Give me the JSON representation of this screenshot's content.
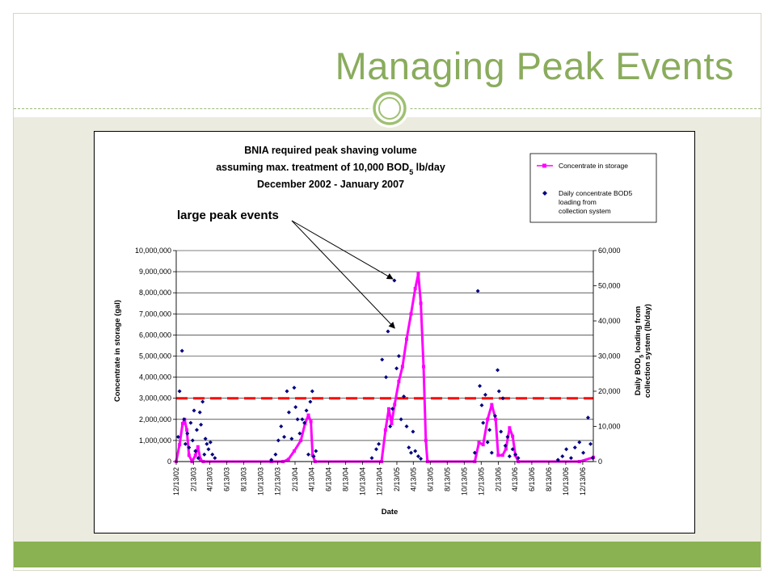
{
  "slide": {
    "title": "Managing Peak Events"
  },
  "colors": {
    "title": "#8aac5d",
    "footer": "#8ab152",
    "body_bg": "#ecebdf",
    "series_storage": "#ff00ff",
    "series_daily": "#000080",
    "threshold": "#ff0000"
  },
  "chart_data": {
    "type": "line",
    "title": [
      "BNIA required peak shaving volume",
      "assuming max. treatment of 10,000 BOD5 lb/day",
      "December 2002 - January 2007"
    ],
    "title_parts": {
      "line2_prefix": "assuming max. treatment of 10,000 BOD",
      "line2_sub": "5",
      "line2_suffix": " lb/day"
    },
    "xlabel": "Date",
    "ylabel": "Concentrate in storage (gal)",
    "y2label": [
      "Daily BOD5 loading from",
      "collection system (lb/day)"
    ],
    "y2label_parts": {
      "prefix": "Daily BOD",
      "sub": "5",
      "suffix": " loading from"
    },
    "x_range": [
      "12/13/02",
      "1/20/07"
    ],
    "x_ticks": [
      "12/13/02",
      "2/13/03",
      "4/13/03",
      "6/13/03",
      "8/13/03",
      "10/13/03",
      "12/13/03",
      "2/13/04",
      "4/13/04",
      "6/13/04",
      "8/13/04",
      "10/13/04",
      "12/13/04",
      "2/13/05",
      "4/13/05",
      "6/13/05",
      "8/13/05",
      "10/13/05",
      "12/13/05",
      "2/13/06",
      "4/13/06",
      "6/13/06",
      "8/13/06",
      "10/13/06",
      "12/13/06"
    ],
    "ylim": [
      0,
      10000000
    ],
    "y_ticks": [
      "0",
      "1,000,000",
      "2,000,000",
      "3,000,000",
      "4,000,000",
      "5,000,000",
      "6,000,000",
      "7,000,000",
      "8,000,000",
      "9,000,000",
      "10,000,000"
    ],
    "y2lim": [
      0,
      60000
    ],
    "y2_ticks": [
      "0",
      "10,000",
      "20,000",
      "30,000",
      "40,000",
      "50,000",
      "60,000"
    ],
    "grid": "horizontal",
    "legend_position": "top-right",
    "threshold_line": {
      "axis": "y2",
      "value": 18000,
      "style": "dashed"
    },
    "series": [
      {
        "name": "Concentrate in storage",
        "axis": "y",
        "points": [
          [
            "12/13/02",
            0
          ],
          [
            "12/25/02",
            800000
          ],
          [
            "1/5/03",
            1800000
          ],
          [
            "1/12/03",
            2000000
          ],
          [
            "1/20/03",
            1500000
          ],
          [
            "1/28/03",
            300000
          ],
          [
            "2/8/03",
            0
          ],
          [
            "2/20/03",
            300000
          ],
          [
            "3/1/03",
            700000
          ],
          [
            "3/10/03",
            100000
          ],
          [
            "3/20/03",
            0
          ],
          [
            "11/20/03",
            0
          ],
          [
            "1/1/04",
            0
          ],
          [
            "1/20/04",
            100000
          ],
          [
            "2/10/04",
            500000
          ],
          [
            "3/5/04",
            1000000
          ],
          [
            "3/20/04",
            1800000
          ],
          [
            "4/1/04",
            2200000
          ],
          [
            "4/10/04",
            1900000
          ],
          [
            "4/16/04",
            300000
          ],
          [
            "4/25/04",
            0
          ],
          [
            "12/20/04",
            0
          ],
          [
            "1/3/05",
            1500000
          ],
          [
            "1/15/05",
            2500000
          ],
          [
            "1/25/05",
            1800000
          ],
          [
            "2/5/05",
            2700000
          ],
          [
            "2/20/05",
            3800000
          ],
          [
            "3/5/05",
            4500000
          ],
          [
            "3/20/05",
            5800000
          ],
          [
            "4/5/05",
            7000000
          ],
          [
            "4/20/05",
            8200000
          ],
          [
            "5/1/05",
            8900000
          ],
          [
            "5/10/05",
            7500000
          ],
          [
            "5/20/05",
            4500000
          ],
          [
            "5/28/05",
            1000000
          ],
          [
            "6/3/05",
            0
          ],
          [
            "11/20/05",
            0
          ],
          [
            "12/5/05",
            900000
          ],
          [
            "12/20/05",
            800000
          ],
          [
            "1/5/06",
            2000000
          ],
          [
            "1/20/06",
            2700000
          ],
          [
            "2/3/06",
            2000000
          ],
          [
            "2/12/06",
            300000
          ],
          [
            "2/28/06",
            300000
          ],
          [
            "3/12/06",
            600000
          ],
          [
            "3/25/06",
            1600000
          ],
          [
            "4/5/06",
            1200000
          ],
          [
            "4/15/06",
            300000
          ],
          [
            "4/25/06",
            0
          ],
          [
            "12/1/06",
            0
          ],
          [
            "1/20/07",
            200000
          ]
        ]
      },
      {
        "name": "Daily concentrate BOD5 loading from collection system",
        "axis": "y2",
        "points": [
          [
            "12/20/02",
            7000
          ],
          [
            "12/25/02",
            20000
          ],
          [
            "1/3/03",
            31500
          ],
          [
            "1/10/03",
            12000
          ],
          [
            "1/15/03",
            5000
          ],
          [
            "1/22/03",
            8000
          ],
          [
            "1/28/03",
            4000
          ],
          [
            "2/3/03",
            11000
          ],
          [
            "2/10/03",
            6000
          ],
          [
            "2/15/03",
            14500
          ],
          [
            "2/20/03",
            3000
          ],
          [
            "2/25/03",
            9000
          ],
          [
            "3/2/03",
            1000
          ],
          [
            "3/8/03",
            14000
          ],
          [
            "3/12/03",
            10500
          ],
          [
            "3/18/03",
            17000
          ],
          [
            "3/24/03",
            2000
          ],
          [
            "3/28/03",
            6500
          ],
          [
            "4/2/03",
            5000
          ],
          [
            "4/8/03",
            3500
          ],
          [
            "4/15/03",
            5500
          ],
          [
            "4/22/03",
            2000
          ],
          [
            "5/1/03",
            1000
          ],
          [
            "11/20/03",
            500
          ],
          [
            "12/5/03",
            2000
          ],
          [
            "12/15/03",
            6000
          ],
          [
            "12/25/03",
            10000
          ],
          [
            "1/5/04",
            7000
          ],
          [
            "1/15/04",
            20000
          ],
          [
            "1/22/04",
            14000
          ],
          [
            "2/1/04",
            6500
          ],
          [
            "2/10/04",
            21000
          ],
          [
            "2/15/04",
            15500
          ],
          [
            "2/22/04",
            12000
          ],
          [
            "3/1/04",
            8000
          ],
          [
            "3/10/04",
            12000
          ],
          [
            "3/18/04",
            11000
          ],
          [
            "3/25/04",
            14500
          ],
          [
            "4/1/04",
            2000
          ],
          [
            "4/8/04",
            17000
          ],
          [
            "4/15/04",
            20000
          ],
          [
            "4/20/04",
            1500
          ],
          [
            "4/28/04",
            3000
          ],
          [
            "11/15/04",
            1000
          ],
          [
            "12/1/04",
            3500
          ],
          [
            "12/10/04",
            5000
          ],
          [
            "12/22/04",
            29000
          ],
          [
            "1/5/05",
            24000
          ],
          [
            "1/12/05",
            37000
          ],
          [
            "1/20/05",
            10000
          ],
          [
            "1/28/05",
            15000
          ],
          [
            "2/4/05",
            51500
          ],
          [
            "2/12/05",
            26500
          ],
          [
            "2/20/05",
            30000
          ],
          [
            "2/28/05",
            12000
          ],
          [
            "3/10/05",
            18500
          ],
          [
            "3/20/05",
            10000
          ],
          [
            "3/28/05",
            4000
          ],
          [
            "4/5/05",
            2500
          ],
          [
            "4/12/05",
            8500
          ],
          [
            "4/20/05",
            3000
          ],
          [
            "5/1/05",
            1500
          ],
          [
            "5/10/05",
            800
          ],
          [
            "11/20/05",
            2500
          ],
          [
            "12/1/05",
            48500
          ],
          [
            "12/8/05",
            21500
          ],
          [
            "12/15/05",
            16000
          ],
          [
            "12/20/05",
            11000
          ],
          [
            "12/28/05",
            19000
          ],
          [
            "1/5/06",
            5500
          ],
          [
            "1/12/06",
            9000
          ],
          [
            "1/20/06",
            2500
          ],
          [
            "2/1/06",
            13000
          ],
          [
            "2/10/06",
            26000
          ],
          [
            "2/15/06",
            20000
          ],
          [
            "2/22/06",
            8500
          ],
          [
            "3/1/06",
            18000
          ],
          [
            "3/10/06",
            4500
          ],
          [
            "3/18/06",
            7000
          ],
          [
            "3/25/06",
            1500
          ],
          [
            "4/5/06",
            3500
          ],
          [
            "4/15/06",
            2000
          ],
          [
            "4/25/06",
            1000
          ],
          [
            "9/15/06",
            500
          ],
          [
            "10/1/06",
            1500
          ],
          [
            "10/15/06",
            3500
          ],
          [
            "11/1/06",
            1000
          ],
          [
            "11/15/06",
            4000
          ],
          [
            "12/1/06",
            5500
          ],
          [
            "12/15/06",
            2500
          ],
          [
            "1/1/07",
            12500
          ],
          [
            "1/10/07",
            5000
          ],
          [
            "1/18/07",
            1000
          ]
        ]
      }
    ],
    "annotation": {
      "text": "large peak events",
      "targets": [
        [
          "2/1/05",
          51500
        ],
        [
          "2/8/05",
          37500
        ]
      ]
    }
  }
}
